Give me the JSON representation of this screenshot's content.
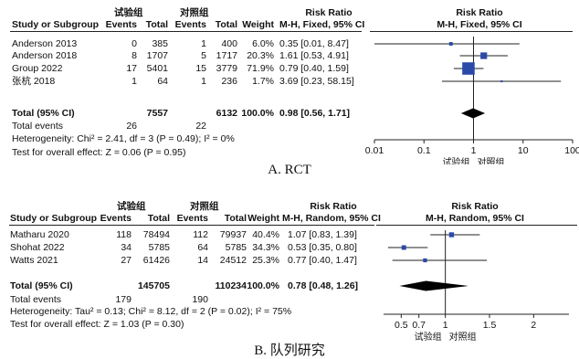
{
  "chart_data": [
    {
      "type": "forest",
      "caption": "A. RCT",
      "group_labels": {
        "experimental": "试验组",
        "control": "对照组"
      },
      "columns": [
        "Study or Subgroup",
        "Events",
        "Total",
        "Events",
        "Total",
        "Weight"
      ],
      "effect_header": "Risk Ratio",
      "effect_subheader": "M-H, Fixed, 95% CI",
      "studies": [
        {
          "name": "Anderson 2013",
          "exp_events": "0",
          "exp_total": "385",
          "ctl_events": "1",
          "ctl_total": "400",
          "weight": "6.0%",
          "ci_text": "0.35 [0.01, 8.47]",
          "rr": 0.35,
          "lo": 0.01,
          "hi": 8.47,
          "w": 6.0
        },
        {
          "name": "Anderson 2018",
          "exp_events": "8",
          "exp_total": "1707",
          "ctl_events": "5",
          "ctl_total": "1717",
          "weight": "20.3%",
          "ci_text": "1.61 [0.53, 4.91]",
          "rr": 1.61,
          "lo": 0.53,
          "hi": 4.91,
          "w": 20.3
        },
        {
          "name": "Group 2022",
          "exp_events": "17",
          "exp_total": "5401",
          "ctl_events": "15",
          "ctl_total": "3779",
          "weight": "71.9%",
          "ci_text": "0.79 [0.40, 1.59]",
          "rr": 0.79,
          "lo": 0.4,
          "hi": 1.59,
          "w": 71.9
        },
        {
          "name": "张杭 2018",
          "exp_events": "1",
          "exp_total": "64",
          "ctl_events": "1",
          "ctl_total": "236",
          "weight": "1.7%",
          "ci_text": "3.69 [0.23, 58.15]",
          "rr": 3.69,
          "lo": 0.23,
          "hi": 58.15,
          "w": 1.7
        }
      ],
      "total": {
        "label": "Total (95% CI)",
        "exp_total": "7557",
        "ctl_total": "6132",
        "weight": "100.0%",
        "ci_text": "0.98 [0.56, 1.71]",
        "rr": 0.98,
        "lo": 0.56,
        "hi": 1.71
      },
      "total_events": {
        "label": "Total events",
        "exp": "26",
        "ctl": "22"
      },
      "heterogeneity": "Heterogeneity: Chi² = 2.41, df = 3 (P = 0.49); I² = 0%",
      "overall_effect": "Test for overall effect: Z = 0.06 (P = 0.95)",
      "axis": {
        "scale": "log",
        "ticks": [
          "0.01",
          "0.1",
          "1",
          "10",
          "100"
        ],
        "tick_values": [
          0.01,
          0.1,
          1,
          10,
          100
        ],
        "range": [
          0.01,
          100
        ]
      },
      "favours": {
        "left": "试验组",
        "right": "对照组"
      }
    },
    {
      "type": "forest",
      "caption": "B. 队列研究",
      "group_labels": {
        "experimental": "试验组",
        "control": "对照组"
      },
      "columns": [
        "Study or Subgroup",
        "Events",
        "Total",
        "Events",
        "Total",
        "Weight"
      ],
      "effect_header": "Risk Ratio",
      "effect_subheader": "M-H, Random, 95% CI",
      "studies": [
        {
          "name": "Matharu 2020",
          "exp_events": "118",
          "exp_total": "78494",
          "ctl_events": "112",
          "ctl_total": "79937",
          "weight": "40.4%",
          "ci_text": "1.07 [0.83, 1.39]",
          "rr": 1.07,
          "lo": 0.83,
          "hi": 1.39,
          "w": 40.4
        },
        {
          "name": "Shohat 2022",
          "exp_events": "34",
          "exp_total": "5785",
          "ctl_events": "64",
          "ctl_total": "5785",
          "weight": "34.3%",
          "ci_text": "0.53 [0.35, 0.80]",
          "rr": 0.53,
          "lo": 0.35,
          "hi": 0.8,
          "w": 34.3
        },
        {
          "name": "Watts 2021",
          "exp_events": "27",
          "exp_total": "61426",
          "ctl_events": "14",
          "ctl_total": "24512",
          "weight": "25.3%",
          "ci_text": "0.77 [0.40, 1.47]",
          "rr": 0.77,
          "lo": 0.4,
          "hi": 1.47,
          "w": 25.3
        }
      ],
      "total": {
        "label": "Total (95% CI)",
        "exp_total": "145705",
        "ctl_total": "110234",
        "weight": "100.0%",
        "ci_text": "0.78 [0.48, 1.26]",
        "rr": 0.78,
        "lo": 0.48,
        "hi": 1.26
      },
      "total_events": {
        "label": "Total events",
        "exp": "179",
        "ctl": "190"
      },
      "heterogeneity": "Heterogeneity: Tau² = 0.13; Chi² = 8.12, df = 2 (P = 0.02); I² = 75%",
      "overall_effect": "Test for overall effect: Z = 1.03 (P = 0.30)",
      "axis": {
        "scale": "linear",
        "ticks": [
          "0.5",
          "0.7",
          "1",
          "1.5",
          "2"
        ],
        "tick_values": [
          0.5,
          0.7,
          1,
          1.5,
          2
        ],
        "range": [
          0.3,
          2.4
        ]
      },
      "favours": {
        "left": "试验组",
        "right": "对照组"
      }
    }
  ],
  "colors": {
    "marker": "#2b4aa8",
    "text": "#111111",
    "line": "#222222"
  }
}
